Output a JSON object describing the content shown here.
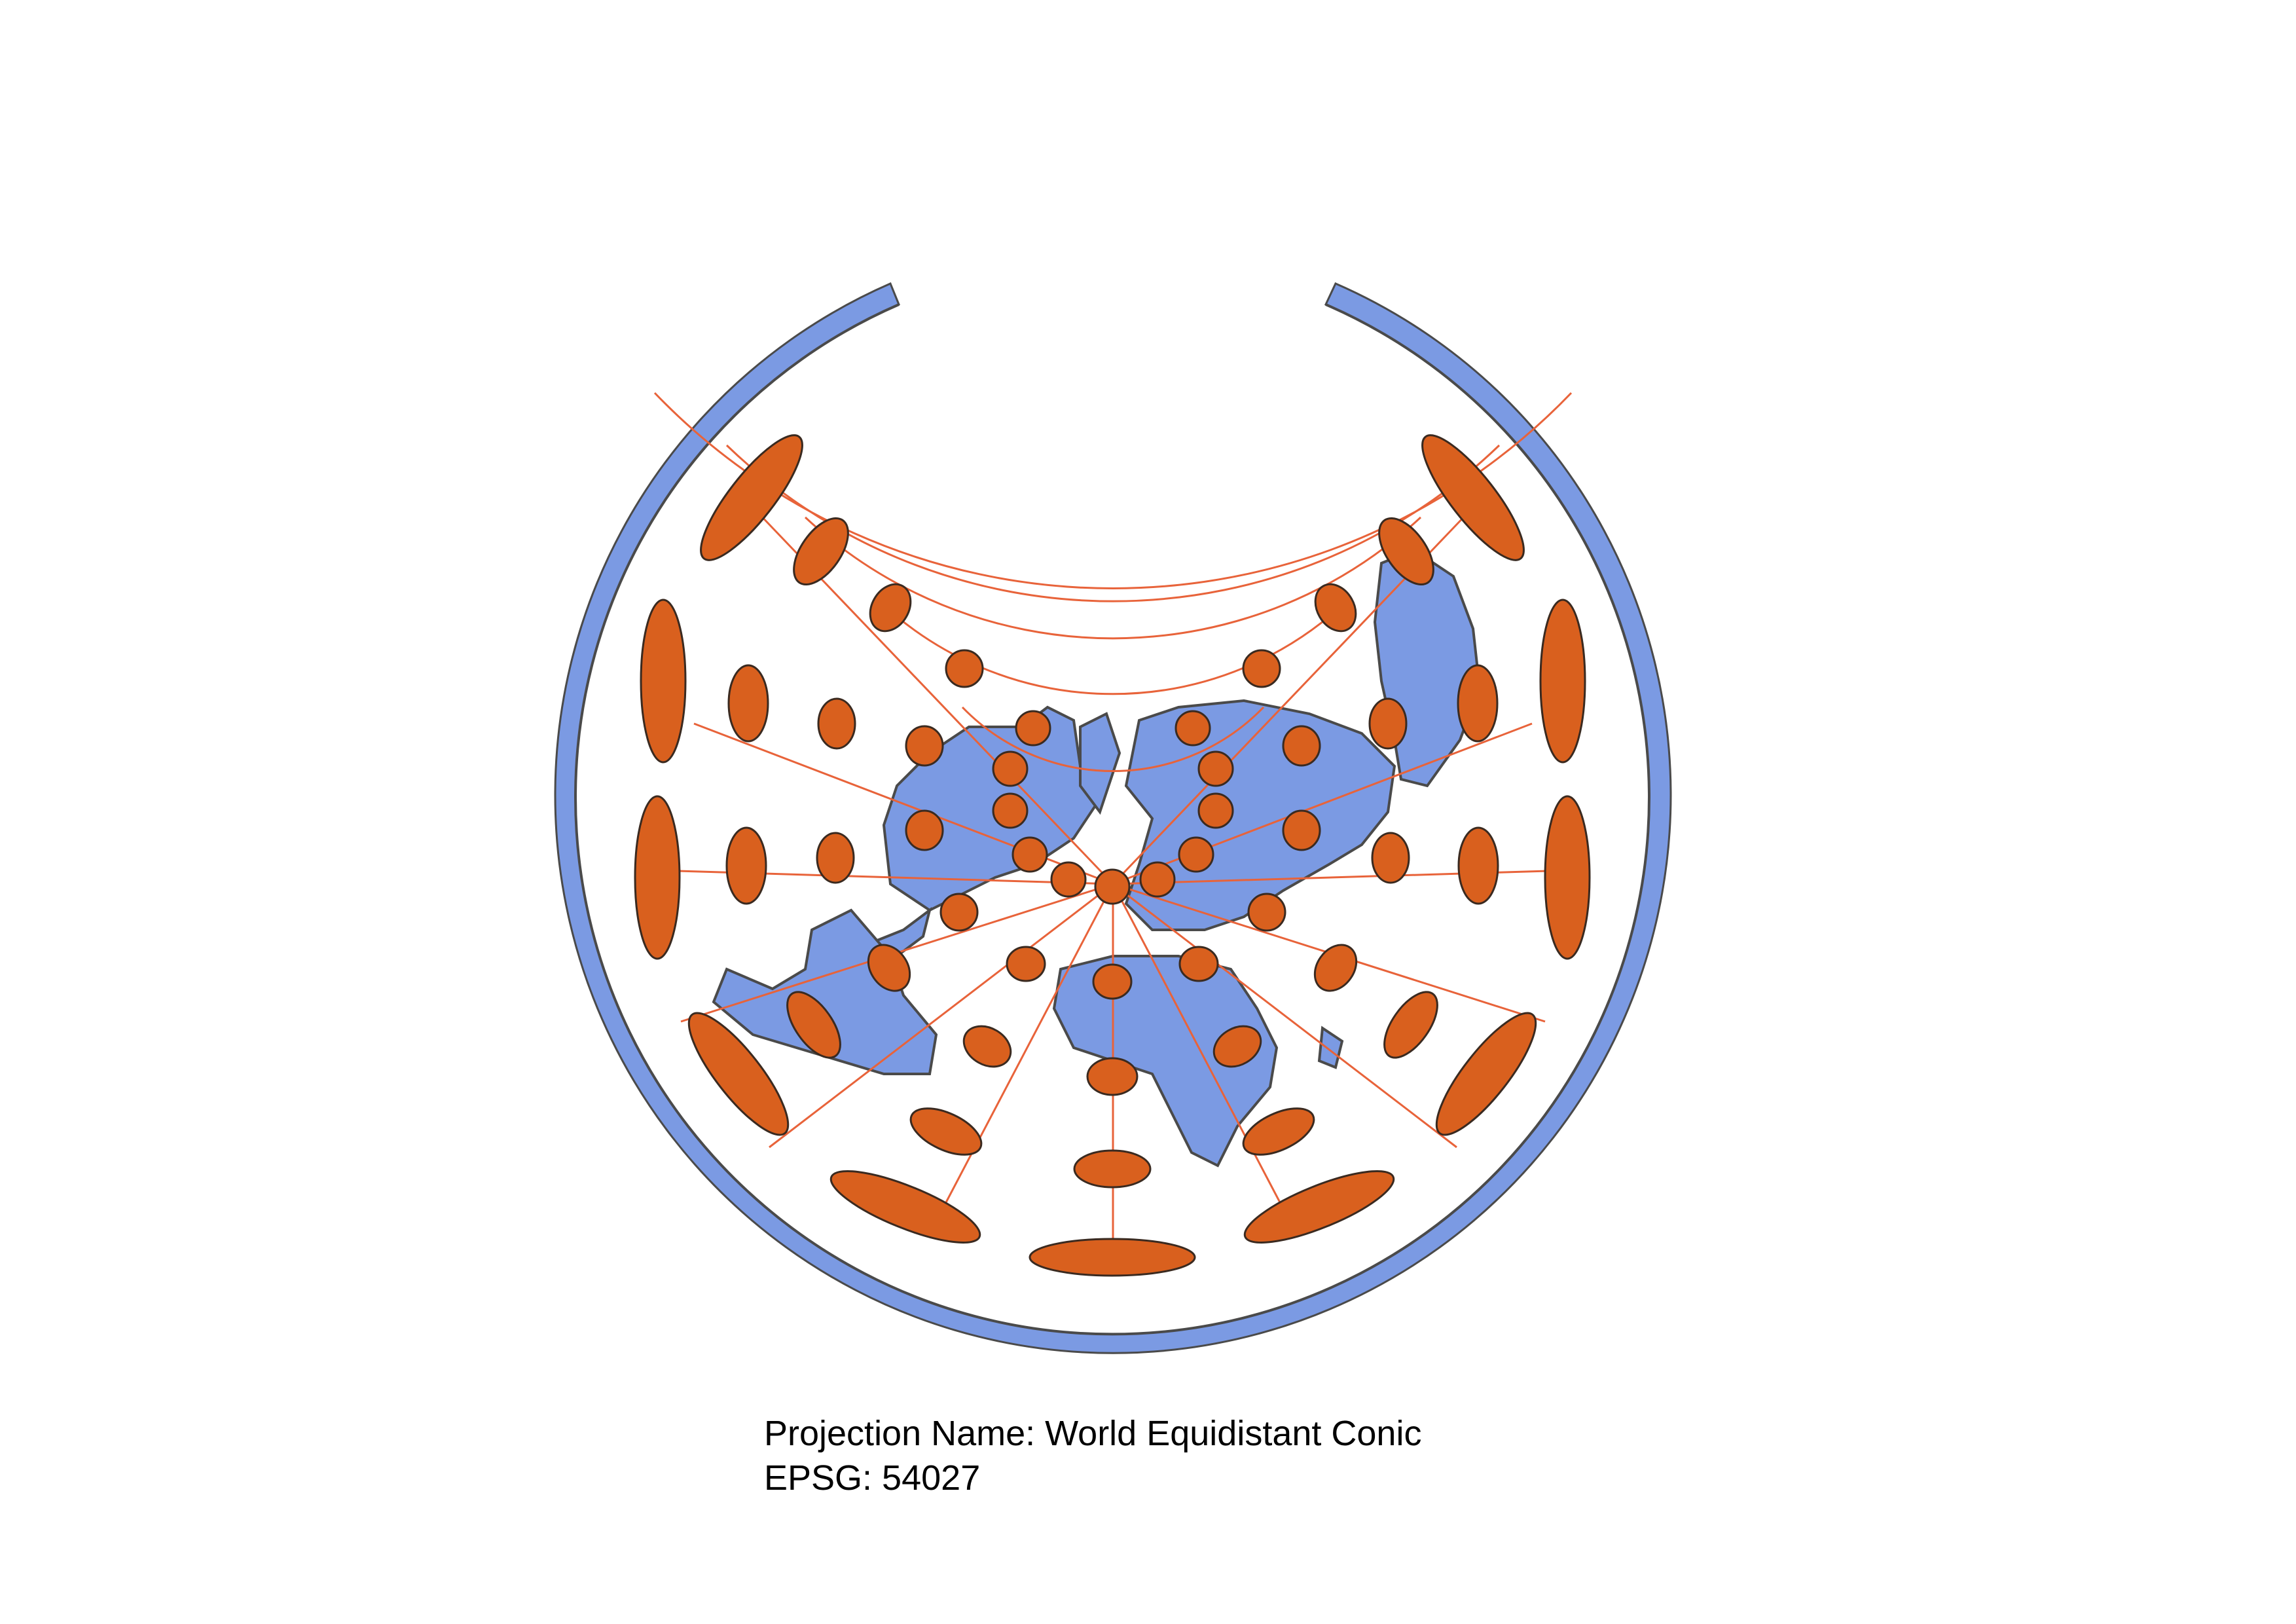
{
  "map": {
    "projection_label": "Projection Name:",
    "projection_name": "World Equidistant Conic",
    "epsg_label": "EPSG:",
    "epsg_code": "54027",
    "caption_line1": "Projection Name: World Equidistant Conic",
    "caption_line2": "EPSG: 54027",
    "colors": {
      "land": "#7b9ae3",
      "land_outline": "#4a4a4a",
      "ellipse_fill": "#d9601e",
      "ellipse_outline": "#3a2a20",
      "graticule": "#e8633a",
      "background": "#ffffff"
    },
    "overlay": "Tissot indicatrix of distortion",
    "graticule_meridians_deg": [
      -180,
      -150,
      -120,
      -90,
      -60,
      -30,
      0,
      30,
      60,
      90,
      120,
      150,
      180
    ],
    "tissot_latitudes_deg": [
      -60,
      -30,
      0,
      30,
      60
    ],
    "tissot_longitudes_deg": [
      -150,
      -120,
      -90,
      -60,
      -30,
      0,
      30,
      60,
      90,
      120,
      150
    ]
  }
}
